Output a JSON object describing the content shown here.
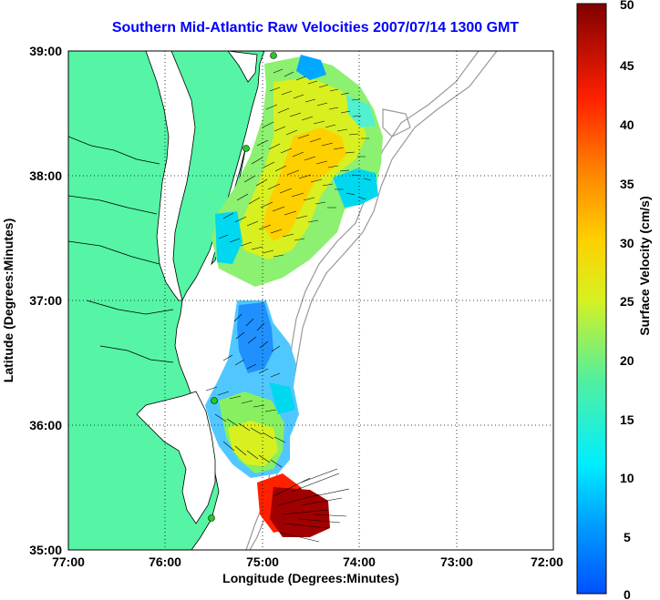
{
  "title": "Southern Mid-Atlantic Raw Velocities 2007/07/14 1300 GMT",
  "x_axis": {
    "label": "Longitude (Degrees:Minutes)",
    "ticks": [
      "77:00",
      "76:00",
      "75:00",
      "74:00",
      "73:00",
      "72:00"
    ]
  },
  "y_axis": {
    "label": "Latitude (Degrees:Minutes)",
    "ticks": [
      "39:00",
      "38:00",
      "37:00",
      "36:00",
      "35:00"
    ]
  },
  "colorbar": {
    "label": "Surface Velocity (cm/s)",
    "ticks": [
      "50",
      "45",
      "40",
      "35",
      "30",
      "25",
      "20",
      "15",
      "10",
      "5",
      "0"
    ],
    "min": 0,
    "max": 50
  },
  "colors": {
    "land": "#55f5a5",
    "title": "#0000ff",
    "station": "#22cc22"
  }
}
